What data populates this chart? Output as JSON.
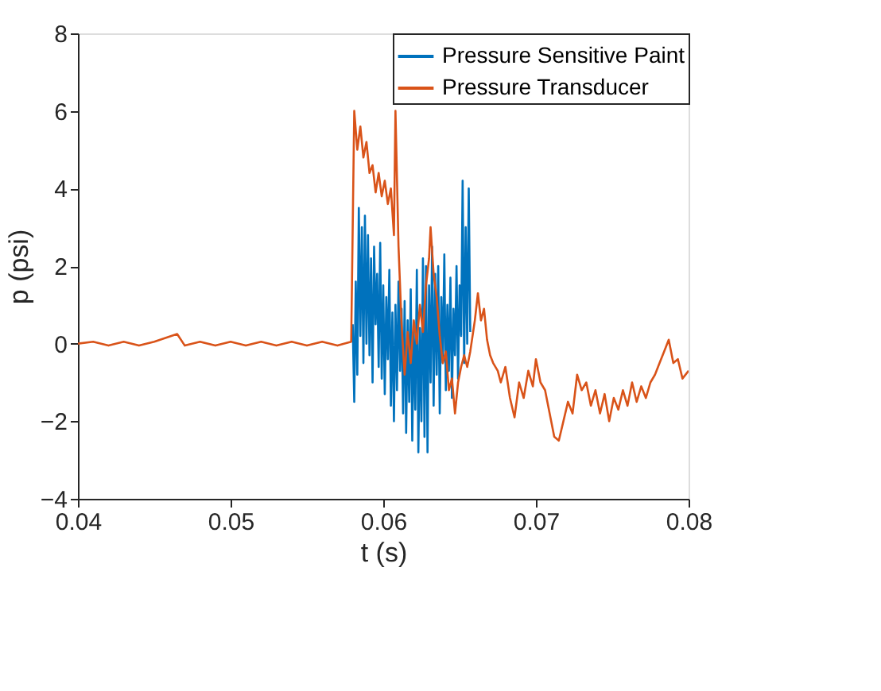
{
  "chart_data": {
    "type": "line",
    "xlabel": "t (s)",
    "ylabel": "p (psi)",
    "xlim": [
      0.04,
      0.08
    ],
    "xticks": [
      0.04,
      0.05,
      0.06,
      0.07,
      0.08
    ],
    "ylim": [
      -4,
      8
    ],
    "yticks": [
      -4,
      -2,
      0,
      2,
      4,
      6,
      8
    ],
    "grid": false,
    "legend": "top right",
    "line_style": "solid",
    "marker": "none",
    "series": [
      {
        "name": "Pressure Sensitive Paint",
        "color": "#0072bd",
        "x": [
          0.058,
          0.0581,
          0.0582,
          0.0583,
          0.0584,
          0.0585,
          0.0586,
          0.0587,
          0.0588,
          0.0589,
          0.059,
          0.0591,
          0.0592,
          0.0593,
          0.0594,
          0.0595,
          0.0596,
          0.0597,
          0.0598,
          0.0599,
          0.06,
          0.0601,
          0.0602,
          0.0603,
          0.0604,
          0.0605,
          0.0606,
          0.0607,
          0.0608,
          0.0609,
          0.061,
          0.0611,
          0.0612,
          0.0613,
          0.0614,
          0.0615,
          0.0616,
          0.0617,
          0.0618,
          0.0619,
          0.062,
          0.0621,
          0.0622,
          0.0623,
          0.0624,
          0.0625,
          0.0626,
          0.0627,
          0.0628,
          0.0629,
          0.063,
          0.0631,
          0.0632,
          0.0633,
          0.0634,
          0.0635,
          0.0636,
          0.0637,
          0.0638,
          0.0639,
          0.064,
          0.0641,
          0.0642,
          0.0643,
          0.0644,
          0.0645,
          0.0646,
          0.0647,
          0.0648,
          0.0649,
          0.065,
          0.0651,
          0.0652,
          0.0653,
          0.0654,
          0.0655,
          0.0656,
          0.0657
        ],
        "values": [
          0.5,
          -1.5,
          1.6,
          -0.8,
          3.5,
          0.2,
          3.0,
          -0.5,
          3.3,
          0.0,
          2.8,
          -0.3,
          2.2,
          -1.0,
          2.5,
          0.5,
          1.8,
          -0.6,
          2.6,
          -0.9,
          1.5,
          -1.3,
          1.2,
          -0.4,
          1.9,
          -1.6,
          0.8,
          -2.0,
          1.0,
          -1.2,
          1.6,
          -0.7,
          0.9,
          -1.8,
          1.1,
          -2.3,
          0.6,
          -1.5,
          1.4,
          -2.5,
          0.3,
          -1.7,
          1.9,
          -2.8,
          0.4,
          -2.0,
          2.2,
          -2.4,
          2.0,
          -2.8,
          1.5,
          -1.0,
          2.5,
          -1.6,
          1.8,
          -0.8,
          2.0,
          -1.8,
          1.2,
          -0.5,
          2.3,
          -1.2,
          1.0,
          -0.7,
          1.7,
          -1.4,
          0.9,
          -0.3,
          2.0,
          -0.9,
          1.5,
          0.2,
          4.2,
          -0.5,
          3.0,
          0.0,
          4.0,
          0.3
        ]
      },
      {
        "name": "Pressure Transducer",
        "color": "#d95319",
        "x": [
          0.04,
          0.041,
          0.042,
          0.043,
          0.044,
          0.045,
          0.0465,
          0.047,
          0.048,
          0.049,
          0.05,
          0.051,
          0.052,
          0.053,
          0.054,
          0.055,
          0.056,
          0.057,
          0.0579,
          0.0581,
          0.0583,
          0.0585,
          0.0587,
          0.0589,
          0.0591,
          0.0593,
          0.0595,
          0.0597,
          0.0599,
          0.0601,
          0.0603,
          0.0605,
          0.0607,
          0.0608,
          0.061,
          0.0612,
          0.0614,
          0.0616,
          0.0618,
          0.062,
          0.0622,
          0.0624,
          0.0626,
          0.0628,
          0.063,
          0.0631,
          0.0633,
          0.0635,
          0.0637,
          0.0639,
          0.0641,
          0.0643,
          0.0645,
          0.0647,
          0.0649,
          0.0651,
          0.0653,
          0.0655,
          0.0657,
          0.066,
          0.0662,
          0.0664,
          0.0666,
          0.0668,
          0.067,
          0.0672,
          0.0675,
          0.0677,
          0.068,
          0.0683,
          0.0686,
          0.0689,
          0.0692,
          0.0695,
          0.0698,
          0.07,
          0.0703,
          0.0706,
          0.0709,
          0.0712,
          0.0715,
          0.0718,
          0.0721,
          0.0724,
          0.0727,
          0.073,
          0.0733,
          0.0736,
          0.0739,
          0.0742,
          0.0745,
          0.0748,
          0.0751,
          0.0754,
          0.0757,
          0.076,
          0.0763,
          0.0766,
          0.0769,
          0.0772,
          0.0775,
          0.0778,
          0.0781,
          0.0784,
          0.0787,
          0.079,
          0.0793,
          0.0796,
          0.08
        ],
        "values": [
          0.0,
          0.05,
          -0.05,
          0.05,
          -0.05,
          0.05,
          0.25,
          -0.05,
          0.05,
          -0.05,
          0.05,
          -0.05,
          0.05,
          -0.05,
          0.05,
          -0.05,
          0.05,
          -0.05,
          0.05,
          6.0,
          5.0,
          5.6,
          4.8,
          5.2,
          4.4,
          4.6,
          3.9,
          4.4,
          3.8,
          4.2,
          3.6,
          4.0,
          2.8,
          6.0,
          2.5,
          0.5,
          -0.8,
          0.3,
          -0.5,
          0.6,
          0.0,
          1.0,
          0.3,
          1.5,
          2.2,
          3.0,
          1.8,
          1.2,
          0.2,
          -0.5,
          -0.2,
          -1.2,
          -0.9,
          -1.8,
          -1.0,
          -0.6,
          -0.3,
          -0.6,
          -0.2,
          0.6,
          1.3,
          0.6,
          0.9,
          0.1,
          -0.3,
          -0.5,
          -0.7,
          -1.0,
          -0.6,
          -1.4,
          -1.9,
          -1.0,
          -1.4,
          -0.7,
          -1.1,
          -0.4,
          -1.0,
          -1.2,
          -1.8,
          -2.4,
          -2.5,
          -2.0,
          -1.5,
          -1.8,
          -0.8,
          -1.2,
          -1.0,
          -1.6,
          -1.2,
          -1.8,
          -1.3,
          -2.0,
          -1.4,
          -1.7,
          -1.2,
          -1.6,
          -1.0,
          -1.5,
          -1.1,
          -1.4,
          -1.0,
          -0.8,
          -0.5,
          -0.2,
          0.1,
          -0.5,
          -0.4,
          -0.9,
          -0.7
        ]
      }
    ]
  }
}
